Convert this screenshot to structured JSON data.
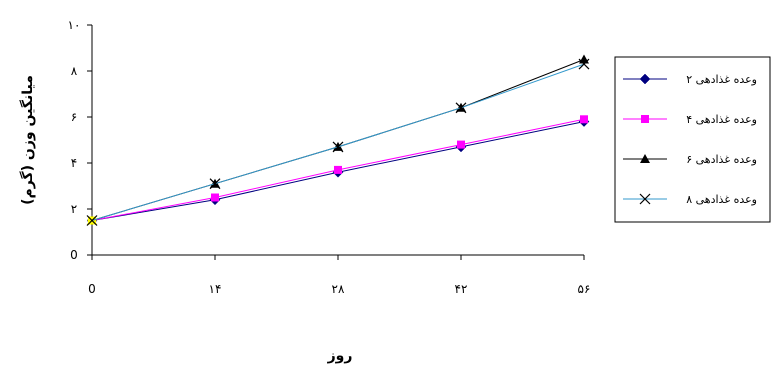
{
  "chart_data": {
    "type": "line",
    "xlabel": "روز",
    "ylabel": "میانگین وزن (گرم)",
    "x": [
      0,
      14,
      28,
      42,
      56
    ],
    "x_tick_labels": [
      "0",
      "۱۴",
      "۲۸",
      "۴۲",
      "۵۶"
    ],
    "ylim": [
      0,
      10
    ],
    "y_ticks": [
      0,
      2,
      4,
      6,
      8,
      10
    ],
    "y_tick_labels": [
      "0",
      "۲",
      "۴",
      "۶",
      "۸",
      "۱۰"
    ],
    "grid": false,
    "legend_position": "right",
    "series": [
      {
        "name": "وعده غذادهی ۲",
        "values": [
          1.5,
          2.4,
          3.6,
          4.7,
          5.8
        ],
        "color": "#000080",
        "marker": "diamond"
      },
      {
        "name": "وعده غذادهی ۴",
        "values": [
          1.5,
          2.5,
          3.7,
          4.8,
          5.9
        ],
        "color": "#ff00ff",
        "marker": "square"
      },
      {
        "name": "وعده غذادهی ۶",
        "values": [
          1.5,
          3.1,
          4.7,
          6.4,
          8.5
        ],
        "color": "#000000",
        "marker": "triangle"
      },
      {
        "name": "وعده غذادهی ۸",
        "values": [
          1.5,
          3.1,
          4.7,
          6.4,
          8.3
        ],
        "color": "#000000",
        "marker": "x"
      }
    ]
  }
}
